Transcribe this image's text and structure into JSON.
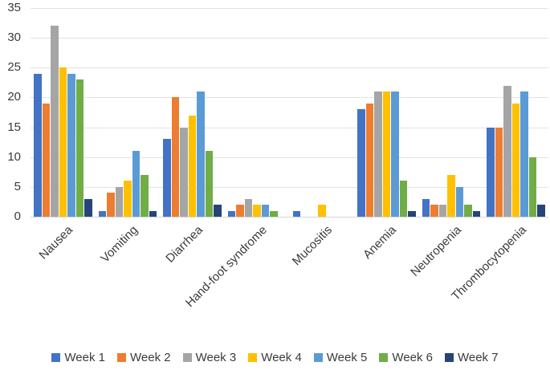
{
  "chart_data": {
    "type": "bar",
    "title": "",
    "xlabel": "",
    "ylabel": "",
    "categories": [
      "Nausea",
      "Vomiting",
      "Diarrhea",
      "Hand-foot syndrome",
      "Mucositis",
      "Anemia",
      "Neutropenia",
      "Thrombocytopenia"
    ],
    "series": [
      {
        "name": "Week 1",
        "color": "#4472C4",
        "values": [
          24,
          1,
          13,
          1,
          1,
          18,
          3,
          15
        ]
      },
      {
        "name": "Week 2",
        "color": "#ED7D31",
        "values": [
          19,
          4,
          20,
          2,
          0,
          19,
          2,
          15
        ]
      },
      {
        "name": "Week 3",
        "color": "#A5A5A5",
        "values": [
          32,
          5,
          15,
          3,
          0,
          21,
          2,
          22
        ]
      },
      {
        "name": "Week 4",
        "color": "#FFC000",
        "values": [
          25,
          6,
          17,
          2,
          2,
          21,
          7,
          19
        ]
      },
      {
        "name": "Week 5",
        "color": "#5B9BD5",
        "values": [
          24,
          11,
          21,
          2,
          0,
          21,
          5,
          21
        ]
      },
      {
        "name": "Week 6",
        "color": "#70AD47",
        "values": [
          23,
          7,
          11,
          1,
          0,
          6,
          2,
          10
        ]
      },
      {
        "name": "Week 7",
        "color": "#264478",
        "values": [
          3,
          1,
          2,
          0,
          0,
          1,
          1,
          2
        ]
      }
    ],
    "ylim": [
      0,
      35
    ],
    "yticks": [
      0,
      5,
      10,
      15,
      20,
      25,
      30,
      35
    ],
    "grid": "horizontal",
    "gridline_color": "#e2e2e2",
    "baseline_color": "#d6d6d6",
    "text_color": "#3b3b3b",
    "legend_position": "bottom"
  }
}
